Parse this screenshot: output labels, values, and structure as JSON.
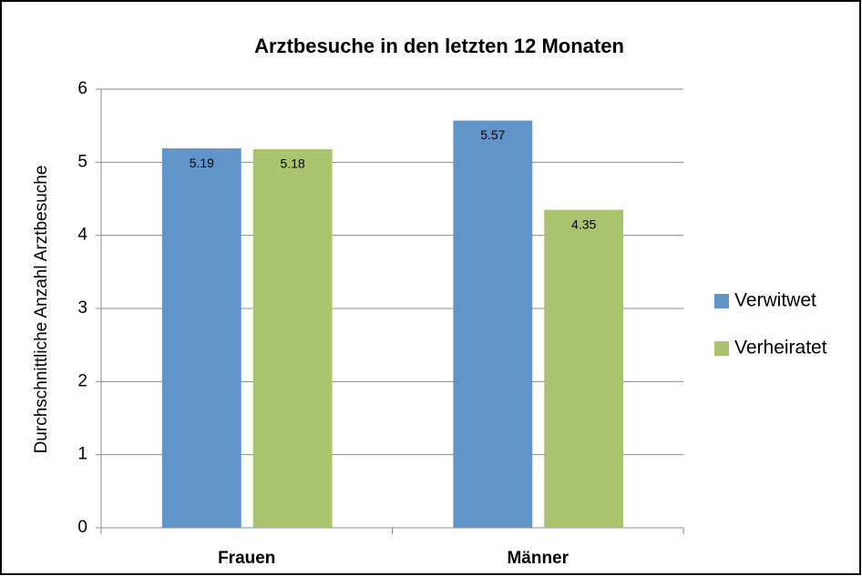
{
  "chart_data": {
    "type": "bar",
    "title": "Arztbesuche in den letzten 12 Monaten",
    "y_label": "Durchschnittliche Anzahl Arztbesuche",
    "categories": [
      "Frauen",
      "Männer"
    ],
    "series": [
      {
        "name": "Verwitwet",
        "color": "#6194c9",
        "values": [
          5.19,
          5.57
        ]
      },
      {
        "name": "Verheiratet",
        "color": "#a9c46c",
        "values": [
          5.18,
          4.35
        ]
      }
    ],
    "ylim": [
      0,
      6
    ],
    "yticks": [
      0,
      1,
      2,
      3,
      4,
      5,
      6
    ],
    "grid": true,
    "legend": "right"
  }
}
